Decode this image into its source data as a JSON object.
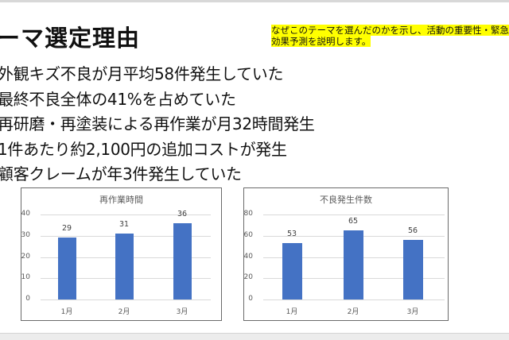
{
  "slide": {
    "title": "ーマ選定理由",
    "note_line1": "なぜこのテーマを選んだのかを示し、活動の重要性・緊急",
    "note_line2": "効果予測を説明します。",
    "bullets": [
      "外観キズ不良が月平均58件発生していた",
      "最終不良全体の41%を占めていた",
      "再研磨・再塗装による再作業が月32時間発生",
      "1件あたり約2,100円の追加コストが発生",
      "顧客クレームが年3件発生していた"
    ]
  },
  "colors": {
    "bar": "#4472c4",
    "highlight": "#ffff00",
    "grid": "#d9d9d9"
  },
  "chart_data": [
    {
      "type": "bar",
      "title": "再作業時間",
      "categories": [
        "1月",
        "2月",
        "3月"
      ],
      "values": [
        29,
        31,
        36
      ],
      "yticks": [
        "0",
        "10",
        "20",
        "30",
        "40"
      ],
      "ylim": [
        0,
        40
      ],
      "xlabel": "",
      "ylabel": "",
      "grid": true,
      "legend": "none"
    },
    {
      "type": "bar",
      "title": "不良発生件数",
      "categories": [
        "1月",
        "2月",
        "3月"
      ],
      "values": [
        53,
        65,
        56
      ],
      "yticks": [
        "0",
        "20",
        "40",
        "60",
        "80"
      ],
      "ylim": [
        0,
        80
      ],
      "xlabel": "",
      "ylabel": "",
      "grid": true,
      "legend": "none"
    }
  ]
}
